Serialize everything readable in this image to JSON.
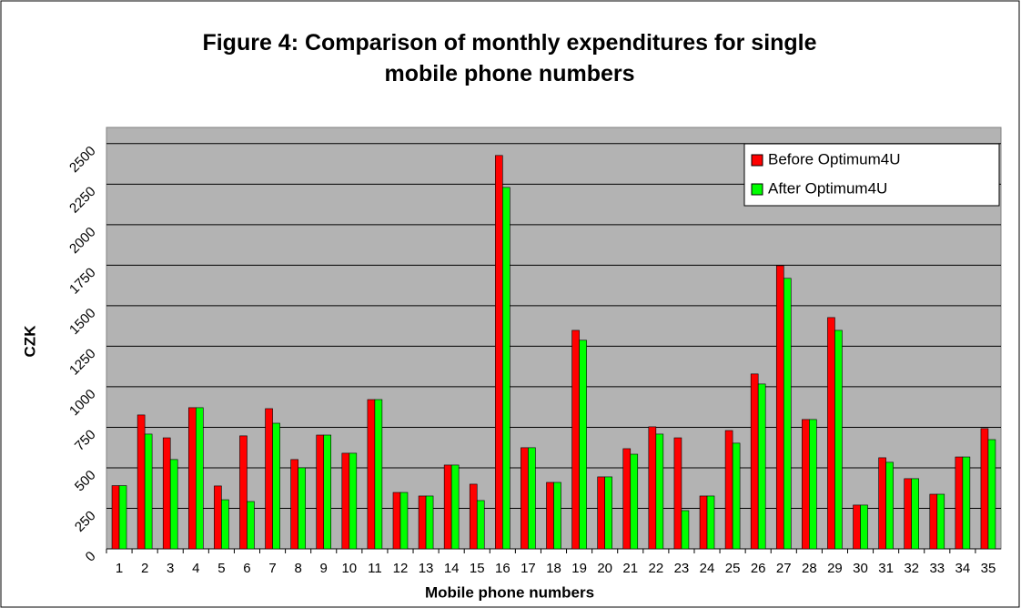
{
  "chart_data": {
    "type": "bar",
    "title": "Figure 4: Comparison of monthly expenditures for single mobile phone numbers",
    "x_label": "Mobile phone numbers",
    "y_label": "CZK",
    "categories": [
      "1",
      "2",
      "3",
      "4",
      "5",
      "6",
      "7",
      "8",
      "9",
      "10",
      "11",
      "12",
      "13",
      "14",
      "15",
      "16",
      "17",
      "18",
      "19",
      "20",
      "21",
      "22",
      "23",
      "24",
      "25",
      "26",
      "27",
      "28",
      "29",
      "30",
      "31",
      "32",
      "33",
      "34",
      "35"
    ],
    "series": [
      {
        "name": "Before Optimum4U",
        "color": "#ff0000",
        "values": [
          390,
          826,
          685,
          871,
          388,
          697,
          865,
          551,
          702,
          590,
          921,
          348,
          326,
          517,
          399,
          2427,
          624,
          410,
          1348,
          444,
          618,
          753,
          685,
          326,
          730,
          1079,
          1747,
          798,
          1427,
          270,
          562,
          433,
          337,
          567,
          742
        ]
      },
      {
        "name": "After Optimum4U",
        "color": "#00ff00",
        "values": [
          390,
          708,
          551,
          871,
          303,
          292,
          775,
          500,
          702,
          590,
          921,
          348,
          326,
          517,
          298,
          2230,
          624,
          410,
          1287,
          444,
          584,
          708,
          236,
          326,
          652,
          1017,
          1669,
          798,
          1348,
          270,
          534,
          433,
          337,
          567,
          674
        ]
      }
    ],
    "ylim": [
      0,
      2600
    ],
    "yticks": [
      0,
      250,
      500,
      750,
      1000,
      1250,
      1500,
      1750,
      2000,
      2250,
      2500
    ],
    "grid": true,
    "legend": "upper right"
  }
}
